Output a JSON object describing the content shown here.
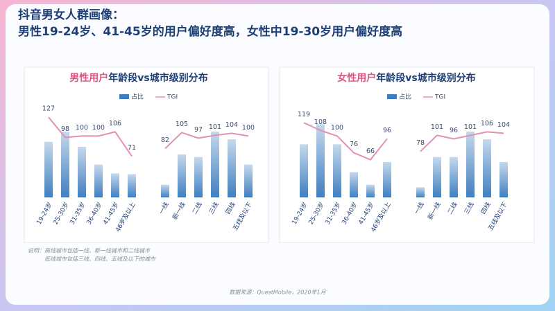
{
  "header": {
    "title": "抖音男女人群画像：",
    "subtitle": "男性19-24岁、41-45岁的用户偏好度高，女性中19-30岁用户偏好度高"
  },
  "notes": [
    "说明：高线城市包括一线、新一线城市和二线城市",
    "低线城市包括三线、四线、五线及以下的城市"
  ],
  "source": "数据来源：QuestMobile，2020年1月",
  "chart_data": [
    {
      "type": "bar-line",
      "title_highlight": "男性用户",
      "title_rest": "年龄段vs城市级别分布",
      "categories": [
        "19-24岁",
        "25-30岁",
        "31-35岁",
        "36-40岁",
        "41-45岁",
        "46岁及以上",
        null,
        "一线",
        "新一线",
        "二线",
        "三线",
        "四线",
        "五线及以下"
      ],
      "series": [
        {
          "name": "占比",
          "color": "#3f7fc0",
          "values": [
            22,
            26,
            20,
            13,
            9.5,
            9.2,
            null,
            5,
            17,
            16,
            26,
            23,
            13
          ]
        },
        {
          "name": "TGI",
          "color": "#e58fb5",
          "axis": "y2",
          "values": [
            127,
            98,
            100,
            100,
            106,
            71,
            null,
            82,
            105,
            97,
            101,
            104,
            100
          ]
        }
      ],
      "ylim": [
        0,
        40
      ],
      "y2lim": [
        12,
        157
      ]
    },
    {
      "type": "bar-line",
      "title_highlight": "女性用户",
      "title_rest": "年龄段vs城市级别分布",
      "categories": [
        "19-24岁",
        "25-30岁",
        "31-35岁",
        "36-40岁",
        "41-45岁",
        "46岁及以上",
        null,
        "一线",
        "新一线",
        "二线",
        "三线",
        "四线",
        "五线及以下"
      ],
      "series": [
        {
          "name": "占比",
          "color": "#3f7fc0",
          "values": [
            21,
            29,
            21,
            10,
            5,
            14,
            null,
            4,
            16,
            16,
            26,
            23,
            14
          ]
        },
        {
          "name": "TGI",
          "color": "#e58fb5",
          "axis": "y2",
          "values": [
            119,
            108,
            100,
            76,
            66,
            96,
            null,
            78,
            101,
            96,
            101,
            106,
            104
          ]
        }
      ],
      "ylim": [
        0,
        40
      ],
      "y2lim": [
        12,
        157
      ]
    }
  ]
}
